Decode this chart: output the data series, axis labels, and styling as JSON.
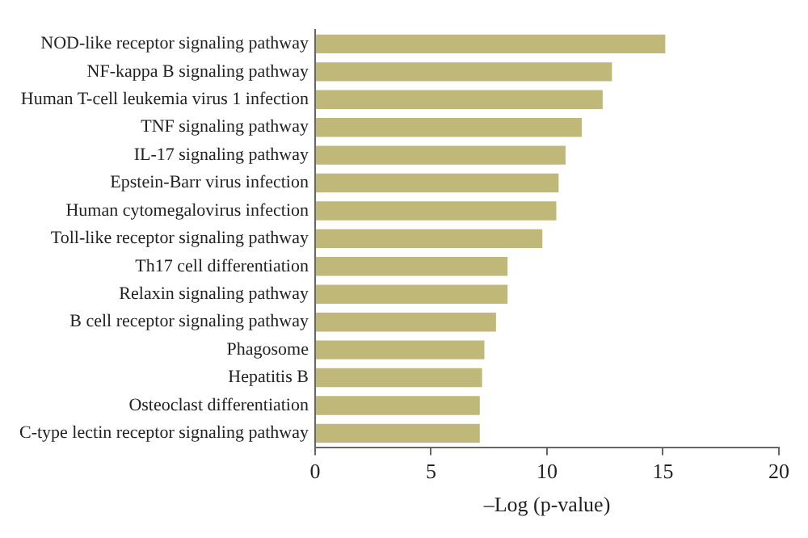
{
  "chart_data": {
    "type": "bar",
    "orientation": "horizontal",
    "xlabel": "–Log (p-value)",
    "categories": [
      "NOD-like receptor signaling pathway",
      "NF-kappa B signaling pathway",
      "Human T-cell leukemia virus 1 infection",
      "TNF signaling pathway",
      "IL-17 signaling pathway",
      "Epstein-Barr virus infection",
      "Human cytomegalovirus infection",
      "Toll-like receptor signaling pathway",
      "Th17 cell differentiation",
      "Relaxin signaling pathway",
      "B cell receptor signaling pathway",
      "Phagosome",
      "Hepatitis B",
      "Osteoclast differentiation",
      "C-type lectin receptor signaling pathway"
    ],
    "values": [
      15.1,
      12.8,
      12.4,
      11.5,
      10.8,
      10.5,
      10.4,
      9.8,
      8.3,
      8.3,
      7.8,
      7.3,
      7.2,
      7.1,
      7.1
    ],
    "color": "#bfb878",
    "xlim": [
      0,
      20
    ],
    "xticks": [
      0,
      5,
      10,
      15,
      20
    ],
    "grid": false,
    "legend": false
  }
}
